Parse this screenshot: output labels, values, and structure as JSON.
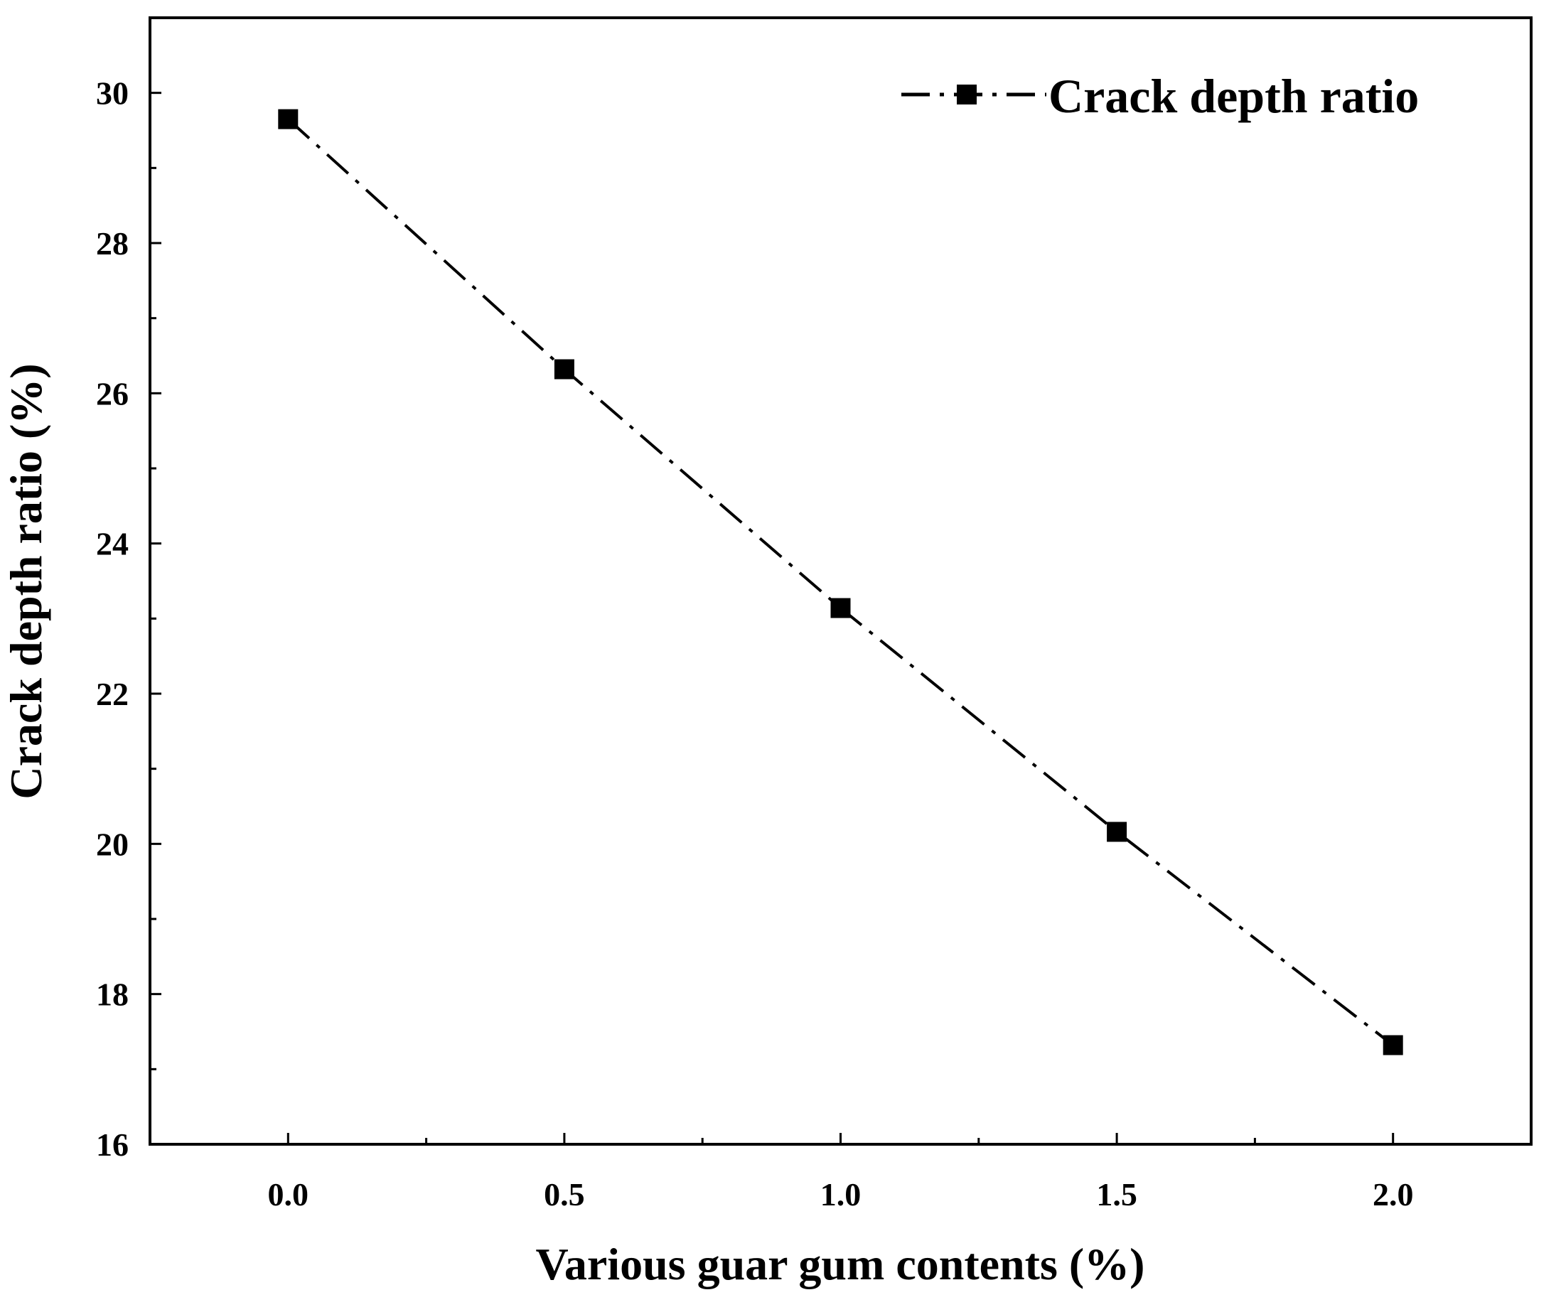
{
  "chart_data": {
    "type": "line",
    "title": "",
    "xlabel": "Various guar gum contents (%)",
    "ylabel": "Crack depth ratio (%)",
    "xlim": [
      -0.25,
      2.25
    ],
    "ylim": [
      16,
      31
    ],
    "xticks": [
      0.0,
      0.5,
      1.0,
      1.5,
      2.0
    ],
    "xtick_labels": [
      "0.0",
      "0.5",
      "1.0",
      "1.5",
      "2.0"
    ],
    "xminor_ticks": [
      0.25,
      0.75,
      1.25,
      1.75
    ],
    "yticks": [
      16,
      18,
      20,
      22,
      24,
      26,
      28,
      30
    ],
    "ytick_labels": [
      "16",
      "18",
      "20",
      "22",
      "24",
      "26",
      "28",
      "30"
    ],
    "yminor_ticks": [
      17,
      19,
      21,
      23,
      25,
      27,
      29
    ],
    "grid": false,
    "legend_position": "top-right",
    "series": [
      {
        "name": "Crack depth ratio",
        "color": "#000000",
        "line_style": "dash-dot",
        "marker": "square",
        "x": [
          0.0,
          0.5,
          1.0,
          1.5,
          2.0
        ],
        "y": [
          29.65,
          26.32,
          23.14,
          20.16,
          17.32
        ]
      }
    ]
  }
}
